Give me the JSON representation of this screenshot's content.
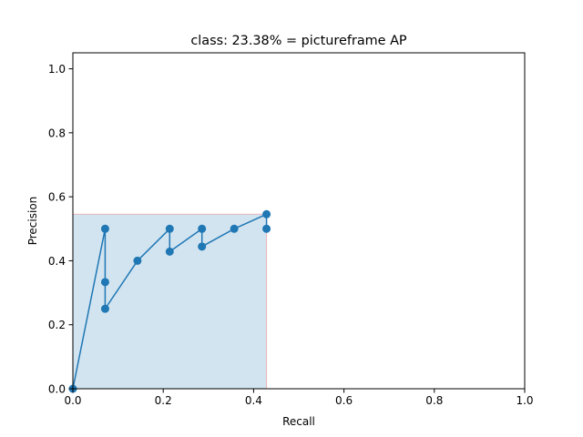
{
  "chart_data": {
    "type": "line",
    "title": "class: 23.38% = pictureframe AP",
    "xlabel": "Recall",
    "ylabel": "Precision",
    "xlim": [
      0.0,
      1.0
    ],
    "ylim": [
      0.0,
      1.05
    ],
    "xticks": [
      "0.0",
      "0.2",
      "0.4",
      "0.6",
      "0.8",
      "1.0"
    ],
    "yticks": [
      "0.0",
      "0.2",
      "0.4",
      "0.6",
      "0.8",
      "1.0"
    ],
    "grid": false,
    "legend": "none",
    "series": [
      {
        "kind": "precision-recall curve with markers",
        "color": "#1f77b4",
        "points": [
          [
            0.0,
            0.0
          ],
          [
            0.0714,
            0.5
          ],
          [
            0.0714,
            0.3333
          ],
          [
            0.0714,
            0.25
          ],
          [
            0.1429,
            0.4
          ],
          [
            0.2143,
            0.5
          ],
          [
            0.2143,
            0.4286
          ],
          [
            0.2857,
            0.5
          ],
          [
            0.2857,
            0.4444
          ],
          [
            0.3571,
            0.5
          ],
          [
            0.4286,
            0.5455
          ],
          [
            0.4286,
            0.5
          ]
        ]
      },
      {
        "kind": "interpolated precision area",
        "fill_color": "#1f77b4",
        "fill_opacity": 0.2,
        "edge_color": "#ff0000",
        "points": [
          [
            0.0,
            0.0
          ],
          [
            0.0,
            0.5455
          ],
          [
            0.4286,
            0.5455
          ],
          [
            0.4286,
            0.0
          ]
        ]
      }
    ]
  }
}
